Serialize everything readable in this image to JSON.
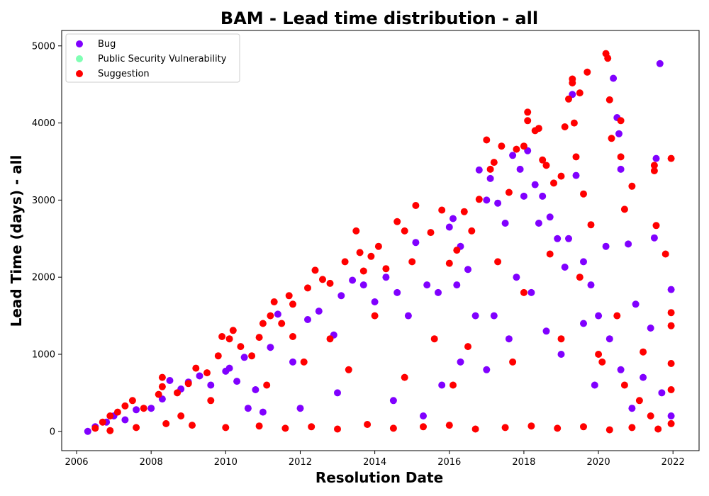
{
  "chart_data": {
    "type": "scatter",
    "title": "BAM - Lead time distribution - all",
    "xlabel": "Resolution Date",
    "ylabel": "Lead Time (days) - all",
    "xlim": [
      2005.6,
      2022.7
    ],
    "ylim": [
      -250,
      5200
    ],
    "x_ticks": [
      "2006",
      "2008",
      "2010",
      "2012",
      "2014",
      "2016",
      "2018",
      "2020",
      "2022"
    ],
    "y_ticks": [
      "0",
      "1000",
      "2000",
      "3000",
      "4000",
      "5000"
    ],
    "grid": false,
    "legend_position": "top-left",
    "series": [
      {
        "name": "Bug",
        "color": "#8000ff",
        "points": [
          [
            2006.3,
            0
          ],
          [
            2006.5,
            60
          ],
          [
            2006.8,
            120
          ],
          [
            2007.0,
            200
          ],
          [
            2007.3,
            150
          ],
          [
            2007.6,
            280
          ],
          [
            2008.0,
            300
          ],
          [
            2008.3,
            420
          ],
          [
            2008.5,
            660
          ],
          [
            2008.8,
            550
          ],
          [
            2009.0,
            640
          ],
          [
            2009.3,
            720
          ],
          [
            2009.6,
            600
          ],
          [
            2010.0,
            780
          ],
          [
            2010.1,
            820
          ],
          [
            2010.3,
            650
          ],
          [
            2010.5,
            960
          ],
          [
            2010.8,
            540
          ],
          [
            2011.2,
            1090
          ],
          [
            2011.4,
            1520
          ],
          [
            2011.8,
            900
          ],
          [
            2012.2,
            1450
          ],
          [
            2012.5,
            1560
          ],
          [
            2012.9,
            1250
          ],
          [
            2013.1,
            1760
          ],
          [
            2013.4,
            1960
          ],
          [
            2013.7,
            1900
          ],
          [
            2014.0,
            1680
          ],
          [
            2014.3,
            2000
          ],
          [
            2014.6,
            1800
          ],
          [
            2014.9,
            1500
          ],
          [
            2015.1,
            2450
          ],
          [
            2015.4,
            1900
          ],
          [
            2015.7,
            1800
          ],
          [
            2016.0,
            2650
          ],
          [
            2016.1,
            2760
          ],
          [
            2016.3,
            2400
          ],
          [
            2016.5,
            2100
          ],
          [
            2016.8,
            3390
          ],
          [
            2017.0,
            3000
          ],
          [
            2017.1,
            3280
          ],
          [
            2017.3,
            2960
          ],
          [
            2017.5,
            2700
          ],
          [
            2017.7,
            3580
          ],
          [
            2017.9,
            3400
          ],
          [
            2018.0,
            3050
          ],
          [
            2018.1,
            3640
          ],
          [
            2018.3,
            3200
          ],
          [
            2018.5,
            3050
          ],
          [
            2018.7,
            2780
          ],
          [
            2018.9,
            2500
          ],
          [
            2019.1,
            2130
          ],
          [
            2019.3,
            4370
          ],
          [
            2019.4,
            3320
          ],
          [
            2019.6,
            2200
          ],
          [
            2019.8,
            1900
          ],
          [
            2020.0,
            1500
          ],
          [
            2020.2,
            2400
          ],
          [
            2020.4,
            4580
          ],
          [
            2020.5,
            4070
          ],
          [
            2020.55,
            3860
          ],
          [
            2020.6,
            3400
          ],
          [
            2020.8,
            2430
          ],
          [
            2021.0,
            1650
          ],
          [
            2021.4,
            1340
          ],
          [
            2021.5,
            2510
          ],
          [
            2021.55,
            3540
          ],
          [
            2021.65,
            4770
          ],
          [
            2021.95,
            1840
          ],
          [
            2021.95,
            200
          ],
          [
            2015.8,
            600
          ],
          [
            2016.3,
            900
          ],
          [
            2017.0,
            800
          ],
          [
            2017.6,
            1200
          ],
          [
            2018.2,
            1800
          ],
          [
            2019.0,
            1000
          ],
          [
            2019.6,
            1400
          ],
          [
            2020.6,
            800
          ],
          [
            2013.0,
            500
          ],
          [
            2012.0,
            300
          ],
          [
            2011.0,
            250
          ],
          [
            2014.5,
            400
          ],
          [
            2016.2,
            1900
          ],
          [
            2017.2,
            1500
          ],
          [
            2018.6,
            1300
          ],
          [
            2019.9,
            600
          ],
          [
            2020.9,
            300
          ],
          [
            2021.7,
            500
          ],
          [
            2015.3,
            200
          ],
          [
            2016.7,
            1500
          ],
          [
            2017.8,
            2000
          ],
          [
            2018.4,
            2700
          ],
          [
            2019.2,
            2500
          ],
          [
            2020.3,
            1200
          ],
          [
            2021.2,
            700
          ],
          [
            2010.6,
            300
          ]
        ]
      },
      {
        "name": "Public Security Vulnerability",
        "color": "#80ffb4",
        "points": []
      },
      {
        "name": "Suggestion",
        "color": "#ff0000",
        "points": [
          [
            2006.5,
            40
          ],
          [
            2006.7,
            120
          ],
          [
            2006.9,
            200
          ],
          [
            2007.1,
            250
          ],
          [
            2007.3,
            330
          ],
          [
            2007.5,
            400
          ],
          [
            2007.8,
            300
          ],
          [
            2008.2,
            480
          ],
          [
            2008.3,
            580
          ],
          [
            2008.3,
            700
          ],
          [
            2008.7,
            500
          ],
          [
            2009.0,
            620
          ],
          [
            2009.2,
            820
          ],
          [
            2009.5,
            760
          ],
          [
            2009.8,
            980
          ],
          [
            2009.9,
            1230
          ],
          [
            2010.1,
            1200
          ],
          [
            2010.2,
            1310
          ],
          [
            2010.4,
            1100
          ],
          [
            2010.7,
            980
          ],
          [
            2010.9,
            1220
          ],
          [
            2011.0,
            1400
          ],
          [
            2011.2,
            1500
          ],
          [
            2011.3,
            1680
          ],
          [
            2011.5,
            1400
          ],
          [
            2011.7,
            1760
          ],
          [
            2011.8,
            1650
          ],
          [
            2011.8,
            1230
          ],
          [
            2012.2,
            1860
          ],
          [
            2012.4,
            2090
          ],
          [
            2012.6,
            1970
          ],
          [
            2012.8,
            1920
          ],
          [
            2013.2,
            2200
          ],
          [
            2013.5,
            2600
          ],
          [
            2013.6,
            2320
          ],
          [
            2013.7,
            2080
          ],
          [
            2013.9,
            2270
          ],
          [
            2014.1,
            2400
          ],
          [
            2014.3,
            2110
          ],
          [
            2014.6,
            2720
          ],
          [
            2014.8,
            2600
          ],
          [
            2015.0,
            2200
          ],
          [
            2015.1,
            2930
          ],
          [
            2015.5,
            2580
          ],
          [
            2015.8,
            2870
          ],
          [
            2016.0,
            2180
          ],
          [
            2016.2,
            2350
          ],
          [
            2016.4,
            2850
          ],
          [
            2016.6,
            2600
          ],
          [
            2016.8,
            3010
          ],
          [
            2017.0,
            3780
          ],
          [
            2017.1,
            3400
          ],
          [
            2017.2,
            3490
          ],
          [
            2017.4,
            3700
          ],
          [
            2017.6,
            3100
          ],
          [
            2017.8,
            3660
          ],
          [
            2018.0,
            3700
          ],
          [
            2018.1,
            4140
          ],
          [
            2018.1,
            4030
          ],
          [
            2018.3,
            3900
          ],
          [
            2018.4,
            3930
          ],
          [
            2018.5,
            3520
          ],
          [
            2018.6,
            3450
          ],
          [
            2018.8,
            3220
          ],
          [
            2019.0,
            3310
          ],
          [
            2019.1,
            3950
          ],
          [
            2019.2,
            4310
          ],
          [
            2019.3,
            4570
          ],
          [
            2019.3,
            4520
          ],
          [
            2019.35,
            4000
          ],
          [
            2019.4,
            3560
          ],
          [
            2019.5,
            4390
          ],
          [
            2019.6,
            3080
          ],
          [
            2019.7,
            4660
          ],
          [
            2019.8,
            2680
          ],
          [
            2020.0,
            1000
          ],
          [
            2020.2,
            4900
          ],
          [
            2020.25,
            4840
          ],
          [
            2020.3,
            4300
          ],
          [
            2020.35,
            3800
          ],
          [
            2020.6,
            4030
          ],
          [
            2020.6,
            3560
          ],
          [
            2020.7,
            2880
          ],
          [
            2020.9,
            3180
          ],
          [
            2021.2,
            1030
          ],
          [
            2021.4,
            200
          ],
          [
            2021.5,
            3450
          ],
          [
            2021.5,
            3380
          ],
          [
            2021.55,
            2670
          ],
          [
            2021.8,
            2300
          ],
          [
            2021.95,
            3540
          ],
          [
            2021.95,
            1540
          ],
          [
            2021.95,
            1370
          ],
          [
            2021.95,
            880
          ],
          [
            2021.95,
            540
          ],
          [
            2021.95,
            100
          ],
          [
            2006.9,
            10
          ],
          [
            2007.6,
            50
          ],
          [
            2008.4,
            100
          ],
          [
            2009.1,
            80
          ],
          [
            2010.0,
            50
          ],
          [
            2010.9,
            70
          ],
          [
            2011.6,
            40
          ],
          [
            2012.3,
            60
          ],
          [
            2013.0,
            30
          ],
          [
            2013.8,
            90
          ],
          [
            2014.5,
            40
          ],
          [
            2015.3,
            60
          ],
          [
            2016.0,
            80
          ],
          [
            2016.7,
            30
          ],
          [
            2017.5,
            50
          ],
          [
            2018.2,
            70
          ],
          [
            2018.9,
            40
          ],
          [
            2019.6,
            60
          ],
          [
            2020.3,
            20
          ],
          [
            2020.9,
            50
          ],
          [
            2021.6,
            30
          ],
          [
            2012.8,
            1200
          ],
          [
            2014.0,
            1500
          ],
          [
            2015.6,
            1200
          ],
          [
            2016.5,
            1100
          ],
          [
            2017.3,
            2200
          ],
          [
            2018.0,
            1800
          ],
          [
            2018.7,
            2300
          ],
          [
            2019.5,
            2000
          ],
          [
            2020.5,
            1500
          ],
          [
            2013.3,
            800
          ],
          [
            2014.8,
            700
          ],
          [
            2016.1,
            600
          ],
          [
            2017.7,
            900
          ],
          [
            2019.0,
            1200
          ],
          [
            2020.1,
            900
          ],
          [
            2020.7,
            600
          ],
          [
            2021.1,
            400
          ],
          [
            2011.1,
            600
          ],
          [
            2012.1,
            900
          ],
          [
            2009.6,
            400
          ],
          [
            2008.8,
            200
          ]
        ]
      }
    ]
  }
}
